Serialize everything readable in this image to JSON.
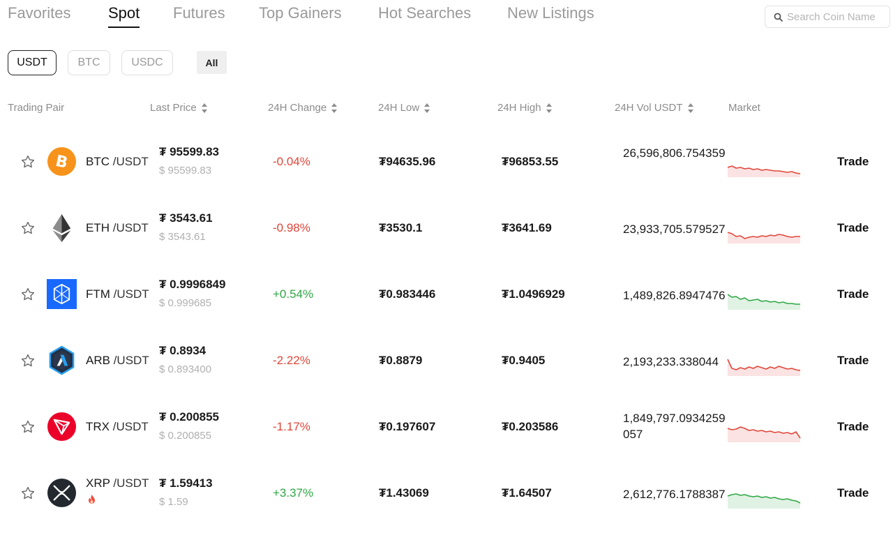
{
  "tabs": [
    {
      "label": "Favorites"
    },
    {
      "label": "Spot"
    },
    {
      "label": "Futures"
    },
    {
      "label": "Top Gainers"
    },
    {
      "label": "Hot Searches"
    },
    {
      "label": "New Listings"
    }
  ],
  "active_tab": "Spot",
  "search": {
    "placeholder": "Search Coin Name"
  },
  "quote_filters": [
    {
      "label": "USDT"
    },
    {
      "label": "BTC"
    },
    {
      "label": "USDC"
    },
    {
      "label": "All"
    }
  ],
  "active_quote": "USDT",
  "headers": {
    "pair": "Trading Pair",
    "last_price": "Last Price",
    "change": "24H Change",
    "low": "24H Low",
    "high": "24H High",
    "volume": "24H Vol USDT",
    "market": "Market"
  },
  "colors": {
    "up": "#2fa745",
    "down": "#e0463a"
  },
  "rows": [
    {
      "base": "BTC",
      "quote": "/USDT",
      "price": "₮ 95599.83",
      "usd": "$ 95599.83",
      "change": "-0.04%",
      "direction": "down",
      "low": "₮94635.96",
      "high": "₮96853.55",
      "volume": "26,596,806.754359",
      "trade": "Trade",
      "icon": "btc-icon",
      "spark": [
        30,
        28,
        31,
        30,
        32,
        31,
        33,
        32,
        34,
        33,
        34,
        35,
        35,
        36,
        37,
        36,
        38,
        39
      ]
    },
    {
      "base": "ETH",
      "quote": "/USDT",
      "price": "₮ 3543.61",
      "usd": "$ 3543.61",
      "change": "-0.98%",
      "direction": "down",
      "low": "₮3530.1",
      "high": "₮3641.69",
      "volume": "23,933,705.579527",
      "trade": "Trade",
      "icon": "eth-icon",
      "spark": [
        28,
        30,
        34,
        33,
        37,
        35,
        34,
        35,
        33,
        34,
        32,
        33,
        31,
        32,
        34,
        35,
        34,
        34
      ]
    },
    {
      "base": "FTM",
      "quote": "/USDT",
      "price": "₮ 0.9996849",
      "usd": "$ 0.999685",
      "change": "+0.54%",
      "direction": "up",
      "low": "₮0.983446",
      "high": "₮1.0496929",
      "volume": "1,489,826.8947476",
      "trade": "Trade",
      "icon": "ftm-icon",
      "spark": [
        22,
        26,
        25,
        29,
        27,
        31,
        30,
        29,
        32,
        31,
        33,
        32,
        34,
        33,
        35,
        35,
        36,
        36
      ]
    },
    {
      "base": "ARB",
      "quote": "/USDT",
      "price": "₮ 0.8934",
      "usd": "$ 0.893400",
      "change": "-2.22%",
      "direction": "down",
      "low": "₮0.8879",
      "high": "₮0.9405",
      "volume": "2,193,233.338044",
      "trade": "Trade",
      "icon": "arb-icon",
      "spark": [
        20,
        33,
        35,
        32,
        34,
        31,
        33,
        30,
        32,
        34,
        31,
        33,
        30,
        32,
        34,
        33,
        35,
        36
      ]
    },
    {
      "base": "TRX",
      "quote": "/USDT",
      "price": "₮ 0.200855",
      "usd": "$ 0.200855",
      "change": "-1.17%",
      "direction": "down",
      "low": "₮0.197607",
      "high": "₮0.203586",
      "volume": "1,849,797.0934259057",
      "trade": "Trade",
      "icon": "trx-icon",
      "spark": [
        24,
        26,
        25,
        22,
        24,
        27,
        26,
        28,
        27,
        29,
        28,
        30,
        29,
        31,
        30,
        32,
        29,
        38
      ]
    },
    {
      "base": "XRP",
      "quote": "/USDT",
      "price": "₮ 1.59413",
      "usd": "$ 1.59",
      "change": "+3.37%",
      "direction": "up",
      "low": "₮1.43069",
      "high": "₮1.64507",
      "volume": "2,612,776.1788387",
      "trade": "Trade",
      "icon": "xrp-icon",
      "hot": true,
      "spark": [
        26,
        24,
        23,
        25,
        24,
        26,
        27,
        26,
        28,
        27,
        29,
        28,
        30,
        31,
        30,
        32,
        33,
        36
      ]
    }
  ]
}
